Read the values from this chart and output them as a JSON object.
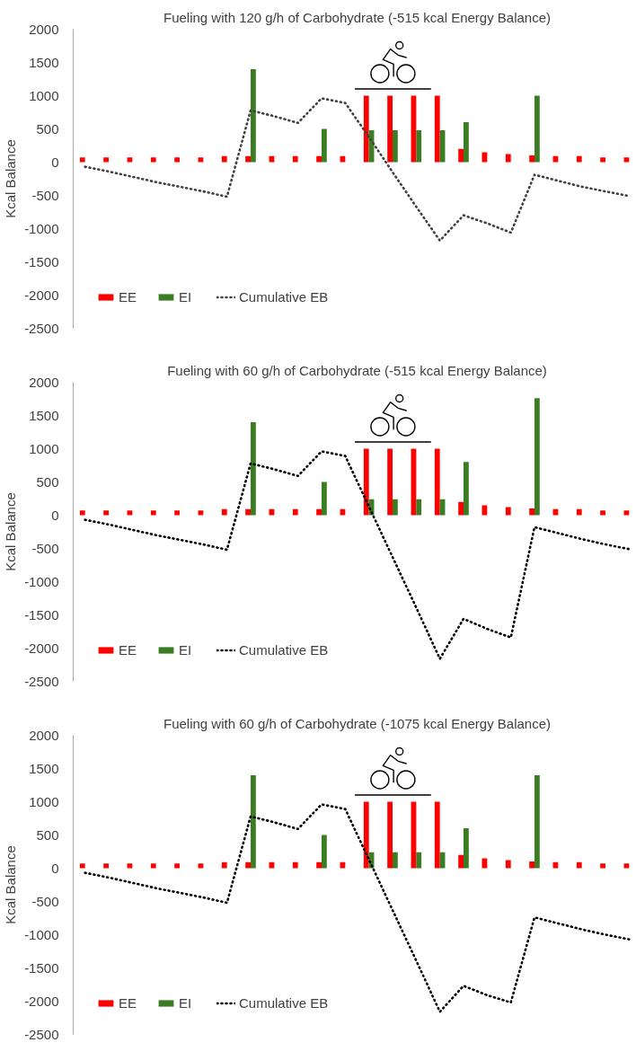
{
  "chart_data": [
    {
      "type": "bar",
      "title": "Fueling with 120 g/h of Carbohydrate (-515 kcal Energy Balance)",
      "ylabel": "Kcal Balance",
      "categories": [
        null,
        null,
        null,
        null,
        null,
        null,
        null,
        null,
        null,
        null,
        null,
        null,
        null,
        null,
        null,
        null,
        null,
        null,
        null,
        null,
        null,
        null,
        null,
        null
      ],
      "series": [
        {
          "name": "EE",
          "color": "#ff0000",
          "values": [
            70,
            70,
            70,
            70,
            70,
            70,
            90,
            90,
            90,
            90,
            90,
            90,
            1000,
            1000,
            1000,
            1000,
            200,
            150,
            120,
            100,
            90,
            90,
            70,
            70
          ]
        },
        {
          "name": "EI",
          "color": "#3b7d23",
          "values": [
            null,
            null,
            null,
            null,
            null,
            null,
            null,
            1400,
            null,
            null,
            500,
            null,
            480,
            480,
            480,
            480,
            600,
            null,
            null,
            1000,
            null,
            null,
            null,
            null
          ]
        },
        {
          "name": "Cumulative EB",
          "type": "line",
          "color": "#404040",
          "line_style": "dotted",
          "values": [
            -70,
            -140,
            -220,
            -300,
            -370,
            -440,
            -520,
            780,
            690,
            590,
            960,
            890,
            380,
            -150,
            -670,
            -1180,
            -800,
            -920,
            -1060,
            -190,
            -280,
            -370,
            -440,
            -510
          ]
        }
      ],
      "ylim": [
        -2500,
        2000
      ],
      "yticks": [
        -2500,
        -2000,
        -1500,
        -1000,
        -500,
        0,
        500,
        1000,
        1500,
        2000
      ],
      "legend": "bottom left",
      "tick_labels": "y"
    },
    {
      "type": "bar",
      "title": "Fueling with 60 g/h of Carbohydrate (-515 kcal Energy Balance)",
      "ylabel": "Kcal Balance",
      "categories": [
        null,
        null,
        null,
        null,
        null,
        null,
        null,
        null,
        null,
        null,
        null,
        null,
        null,
        null,
        null,
        null,
        null,
        null,
        null,
        null,
        null,
        null,
        null,
        null
      ],
      "series": [
        {
          "name": "EE",
          "color": "#ff0000",
          "values": [
            70,
            70,
            70,
            70,
            70,
            70,
            90,
            90,
            90,
            90,
            90,
            90,
            1000,
            1000,
            1000,
            1000,
            200,
            150,
            120,
            100,
            90,
            90,
            70,
            70
          ]
        },
        {
          "name": "EI",
          "color": "#3b7d23",
          "values": [
            null,
            null,
            null,
            null,
            null,
            null,
            null,
            1400,
            null,
            null,
            500,
            null,
            240,
            240,
            240,
            240,
            800,
            null,
            null,
            1760,
            null,
            null,
            null,
            null
          ]
        },
        {
          "name": "Cumulative EB",
          "type": "line",
          "color": "#000000",
          "line_style": "dotted",
          "values": [
            -70,
            -140,
            -220,
            -300,
            -370,
            -440,
            -520,
            780,
            690,
            590,
            960,
            890,
            130,
            -630,
            -1390,
            -2160,
            -1560,
            -1710,
            -1840,
            -180,
            -270,
            -360,
            -440,
            -510
          ]
        }
      ],
      "ylim": [
        -2500,
        2000
      ],
      "yticks": [
        -2500,
        -2000,
        -1500,
        -1000,
        -500,
        0,
        500,
        1000,
        1500,
        2000
      ],
      "legend": "bottom left",
      "tick_labels": "y"
    },
    {
      "type": "bar",
      "title": "Fueling with 60 g/h of Carbohydrate (-1075 kcal Energy Balance)",
      "ylabel": "Kcal Balance",
      "categories": [
        null,
        null,
        null,
        null,
        null,
        null,
        null,
        null,
        null,
        null,
        null,
        null,
        null,
        null,
        null,
        null,
        null,
        null,
        null,
        null,
        null,
        null,
        null,
        null
      ],
      "series": [
        {
          "name": "EE",
          "color": "#ff0000",
          "values": [
            70,
            70,
            70,
            70,
            70,
            70,
            90,
            90,
            90,
            90,
            90,
            90,
            1000,
            1000,
            1000,
            1000,
            200,
            150,
            120,
            100,
            90,
            90,
            70,
            70
          ]
        },
        {
          "name": "EI",
          "color": "#3b7d23",
          "values": [
            null,
            null,
            null,
            null,
            null,
            null,
            null,
            1400,
            null,
            null,
            500,
            null,
            240,
            240,
            240,
            240,
            600,
            null,
            null,
            1400,
            null,
            null,
            null,
            null
          ]
        },
        {
          "name": "Cumulative EB",
          "type": "line",
          "color": "#000000",
          "line_style": "dotted",
          "values": [
            -70,
            -140,
            -220,
            -300,
            -370,
            -440,
            -520,
            780,
            690,
            590,
            960,
            890,
            130,
            -630,
            -1390,
            -2160,
            -1770,
            -1910,
            -2020,
            -740,
            -830,
            -920,
            -1000,
            -1070
          ]
        }
      ],
      "ylim": [
        -2500,
        2000
      ],
      "yticks": [
        -2500,
        -2000,
        -1500,
        -1000,
        -500,
        0,
        500,
        1000,
        1500,
        2000
      ],
      "legend": "bottom left",
      "tick_labels": "y"
    }
  ]
}
